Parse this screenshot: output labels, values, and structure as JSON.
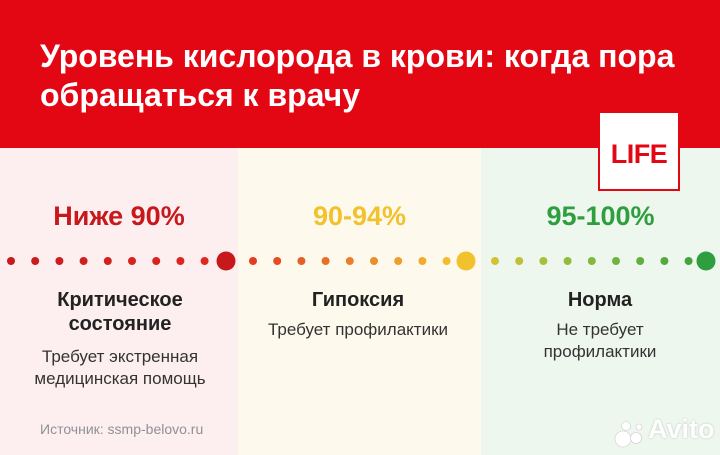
{
  "header": {
    "title": "Уровень кислорода в крови: когда пора обращаться к врачу",
    "background": "#e30613"
  },
  "logo": {
    "text": "LIFE",
    "color": "#e30613"
  },
  "levels": [
    {
      "range": "Ниже 90%",
      "state": "Критическое состояние",
      "note": "Требует экстренная медицинская помощь",
      "color": "#c7191c"
    },
    {
      "range": "90-94%",
      "state": "Гипоксия",
      "note": "Требует профилактики",
      "color": "#f2c12e"
    },
    {
      "range": "95-100%",
      "state": "Норма",
      "note": "Не требует профилактики",
      "color": "#2e9e3e"
    }
  ],
  "source": "Источник: ssmp-belovo.ru",
  "watermark": {
    "text": "Avito"
  }
}
